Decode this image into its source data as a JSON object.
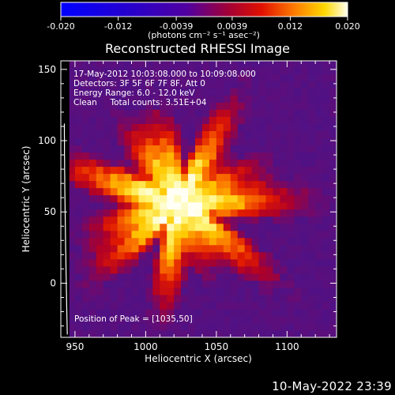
{
  "chart_data": {
    "type": "heatmap",
    "title": "Reconstructed RHESSI Image",
    "xlabel": "Heliocentric X (arcsec)",
    "ylabel": "Heliocentric Y (arcsec)",
    "xlim": [
      940,
      1135
    ],
    "ylim": [
      -38,
      156
    ],
    "xticks": [
      950,
      1000,
      1050,
      1100
    ],
    "yticks": [
      0,
      50,
      100,
      150
    ],
    "colorbar": {
      "range": [
        -0.02,
        0.02
      ],
      "ticks": [
        "-0.020",
        "-0.012",
        "-0.0039",
        "0.0039",
        "0.012",
        "0.020"
      ],
      "tick_values": [
        -0.02,
        -0.012,
        -0.0039,
        0.0039,
        0.012,
        0.02
      ],
      "units": "(photons cm⁻² s⁻¹ asec⁻²)"
    },
    "info_lines": [
      "17-May-2012 10:03:08.000 to 10:09:08.000",
      "Detectors: 3F 5F 6F 7F 8F, Att 0",
      "Energy Range: 6.0 - 12.0 keV",
      "Clean     Total counts: 3.51E+04"
    ],
    "peak_label": "Position of Peak = [1035,50]",
    "peak_position": [
      1035,
      50
    ],
    "source_center": [
      1023,
      56
    ],
    "background_color": "#5a1f9a",
    "limb_color": "#ffffff"
  },
  "footer_stamp": "10-May-2022 23:39"
}
